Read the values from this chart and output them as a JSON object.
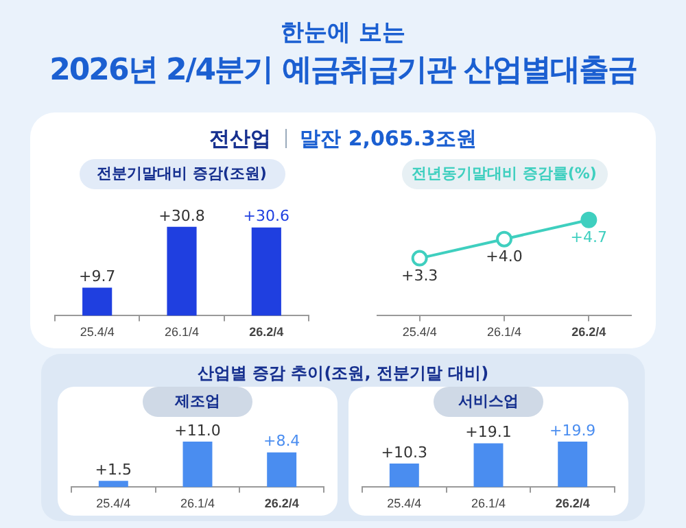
{
  "chart_data": [
    {
      "type": "other",
      "subtitle": "한눈에 보는",
      "title": "2026년 2/4분기 예금취급기관 산업별대출금",
      "annotations": [
        "전산업",
        "말잔 2,065.3조원"
      ]
    },
    {
      "type": "bar",
      "title": "전분기말대비 증감(조원)",
      "categories": [
        "25.4/4",
        "26.1/4",
        "26.2/4"
      ],
      "values": [
        9.7,
        30.8,
        30.6
      ],
      "value_labels": [
        "+9.7",
        "+30.8",
        "+30.6"
      ],
      "color": "#1f3fe0"
    },
    {
      "type": "line",
      "title": "전년동기말대비 증감률(%)",
      "categories": [
        "25.4/4",
        "26.1/4",
        "26.2/4"
      ],
      "values": [
        3.3,
        4.0,
        4.7
      ],
      "value_labels": [
        "+3.3",
        "+4.0",
        "+4.7"
      ],
      "color": "#3fcfbf",
      "marker": "circle"
    },
    {
      "type": "other",
      "title": "산업별 증감 추이(조원, 전분기말 대비)"
    },
    {
      "type": "bar",
      "title": "제조업",
      "categories": [
        "25.4/4",
        "26.1/4",
        "26.2/4"
      ],
      "values": [
        1.5,
        11.0,
        8.4
      ],
      "value_labels": [
        "+1.5",
        "+11.0",
        "+8.4"
      ],
      "color": "#4a8df0"
    },
    {
      "type": "bar",
      "title": "서비스업",
      "categories": [
        "25.4/4",
        "26.1/4",
        "26.2/4"
      ],
      "values": [
        10.3,
        19.1,
        19.9
      ],
      "value_labels": [
        "+10.3",
        "+19.1",
        "+19.9"
      ],
      "color": "#4a8df0"
    }
  ]
}
